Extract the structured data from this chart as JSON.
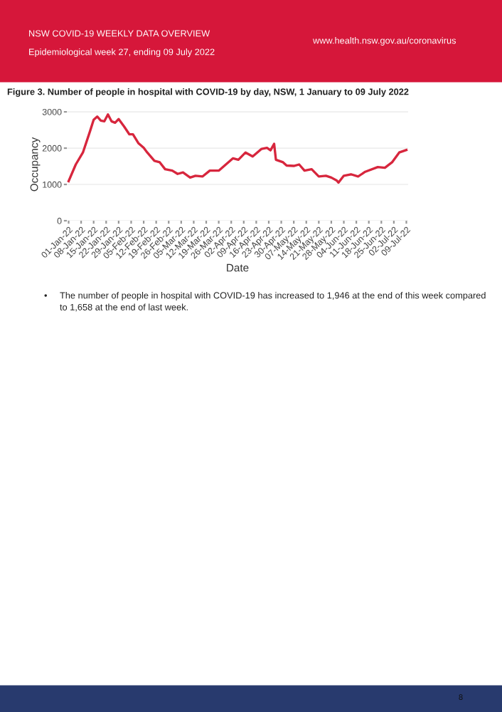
{
  "chart_data": {
    "type": "line",
    "title": "Figure 3. Number of people in hospital with COVID-19 by day, NSW, 1 January to 09 July 2022",
    "xlabel": "Date",
    "ylabel": "Occupancy",
    "annotations": [
      "NSW COVID-19 WEEKLY DATA OVERVIEW",
      "Epidemiological week 27, ending 09 July 2022",
      "www.health.nsw.gov.au/coronavirus",
      "The number of people in hospital with COVID-19 has increased to 1,946 at the end of this week compared to 1,658 at the end of last week.",
      "8",
      "•"
    ],
    "x": [
      "2022-01-01",
      "2022-01-05",
      "2022-01-09",
      "2022-01-13",
      "2022-01-15",
      "2022-01-17",
      "2022-01-19",
      "2022-01-21",
      "2022-01-23",
      "2022-01-25",
      "2022-01-27",
      "2022-01-29",
      "2022-02-01",
      "2022-02-04",
      "2022-02-06",
      "2022-02-09",
      "2022-02-12",
      "2022-02-14",
      "2022-02-18",
      "2022-02-21",
      "2022-02-24",
      "2022-02-28",
      "2022-03-03",
      "2022-03-06",
      "2022-03-10",
      "2022-03-13",
      "2022-03-17",
      "2022-03-21",
      "2022-03-26",
      "2022-03-30",
      "2022-04-03",
      "2022-04-06",
      "2022-04-10",
      "2022-04-14",
      "2022-04-19",
      "2022-04-22",
      "2022-04-24",
      "2022-04-26",
      "2022-04-27",
      "2022-05-01",
      "2022-05-03",
      "2022-05-07",
      "2022-05-10",
      "2022-05-13",
      "2022-05-17",
      "2022-05-21",
      "2022-05-25",
      "2022-05-28",
      "2022-05-31",
      "2022-06-01",
      "2022-06-04",
      "2022-06-08",
      "2022-06-12",
      "2022-06-16",
      "2022-06-23",
      "2022-06-27",
      "2022-07-01",
      "2022-07-05",
      "2022-07-09"
    ],
    "series": [
      {
        "color": "#d7263d",
        "values": [
          1090,
          1550,
          1880,
          2470,
          2780,
          2870,
          2760,
          2740,
          2930,
          2740,
          2700,
          2800,
          2600,
          2380,
          2380,
          2140,
          2010,
          1880,
          1650,
          1610,
          1420,
          1380,
          1290,
          1330,
          1190,
          1240,
          1220,
          1380,
          1380,
          1550,
          1720,
          1680,
          1880,
          1770,
          1980,
          2010,
          1940,
          2120,
          1680,
          1610,
          1520,
          1510,
          1550,
          1380,
          1420,
          1220,
          1240,
          1190,
          1110,
          1050,
          1240,
          1280,
          1220,
          1350,
          1480,
          1460,
          1610,
          1880,
          1950
        ]
      }
    ],
    "xlim": [
      "2021-12-31",
      "2022-07-10"
    ],
    "ylim": [
      0,
      3100
    ],
    "yticks": [
      0,
      1000,
      2000,
      3000
    ],
    "xticks": [
      {
        "value": "2022-01-01",
        "label": "01-Jan-22"
      },
      {
        "value": "2022-01-08",
        "label": "08-Jan-22"
      },
      {
        "value": "2022-01-15",
        "label": "15-Jan-22"
      },
      {
        "value": "2022-01-22",
        "label": "22-Jan-22"
      },
      {
        "value": "2022-01-29",
        "label": "29-Jan-22"
      },
      {
        "value": "2022-02-05",
        "label": "05-Feb-22"
      },
      {
        "value": "2022-02-12",
        "label": "12-Feb-22"
      },
      {
        "value": "2022-02-19",
        "label": "19-Feb-22"
      },
      {
        "value": "2022-02-26",
        "label": "26-Feb-22"
      },
      {
        "value": "2022-03-05",
        "label": "05-Mar-22"
      },
      {
        "value": "2022-03-12",
        "label": "12-Mar-22"
      },
      {
        "value": "2022-03-19",
        "label": "19-Mar-22"
      },
      {
        "value": "2022-03-26",
        "label": "26-Mar-22"
      },
      {
        "value": "2022-04-02",
        "label": "02-Apr-22"
      },
      {
        "value": "2022-04-09",
        "label": "09-Apr-22"
      },
      {
        "value": "2022-04-16",
        "label": "16-Apr-22"
      },
      {
        "value": "2022-04-23",
        "label": "23-Apr-22"
      },
      {
        "value": "2022-04-30",
        "label": "30-Apr-22"
      },
      {
        "value": "2022-05-07",
        "label": "07-May-22"
      },
      {
        "value": "2022-05-14",
        "label": "14-May-22"
      },
      {
        "value": "2022-05-21",
        "label": "21-May-22"
      },
      {
        "value": "2022-05-28",
        "label": "28-May-22"
      },
      {
        "value": "2022-06-04",
        "label": "04-Jun-22"
      },
      {
        "value": "2022-06-11",
        "label": "11-Jun-22"
      },
      {
        "value": "2022-06-18",
        "label": "18-Jun-22"
      },
      {
        "value": "2022-06-25",
        "label": "25-Jun-22"
      },
      {
        "value": "2022-07-02",
        "label": "02-Jul-22"
      },
      {
        "value": "2022-07-09",
        "label": "09-Jul-22"
      }
    ],
    "grid": "y",
    "legend": false,
    "marker": "none",
    "line_style": "solid"
  }
}
